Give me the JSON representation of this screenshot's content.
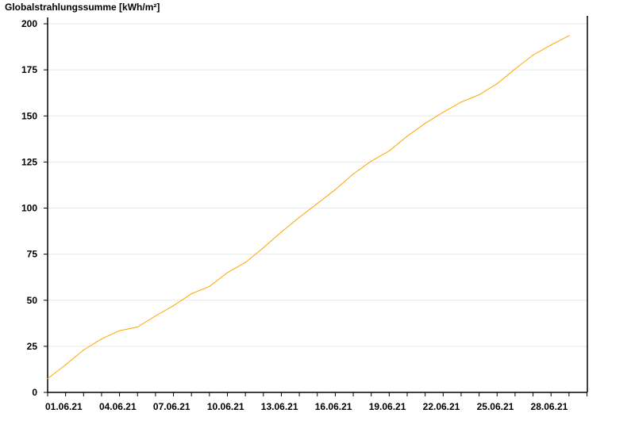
{
  "chart_data": {
    "type": "line",
    "ylabel": "Globalstrahlungssumme [kWh/m²]",
    "ylim": [
      0,
      200
    ],
    "yticks": [
      0,
      25,
      50,
      75,
      100,
      125,
      150,
      175,
      200
    ],
    "xtick_labels": [
      "01.06.21",
      "04.06.21",
      "07.06.21",
      "10.06.21",
      "13.06.21",
      "16.06.21",
      "19.06.21",
      "22.06.21",
      "25.06.21",
      "28.06.21"
    ],
    "grid": "horizontal",
    "line_color": "#ffa500",
    "x": [
      "01.06.21",
      "02.06.21",
      "03.06.21",
      "04.06.21",
      "05.06.21",
      "06.06.21",
      "07.06.21",
      "08.06.21",
      "09.06.21",
      "10.06.21",
      "11.06.21",
      "12.06.21",
      "13.06.21",
      "14.06.21",
      "15.06.21",
      "16.06.21",
      "17.06.21",
      "18.06.21",
      "19.06.21",
      "20.06.21",
      "21.06.21",
      "22.06.21",
      "23.06.21",
      "24.06.21",
      "25.06.21",
      "26.06.21",
      "27.06.21",
      "28.06.21",
      "29.06.21",
      "30.06.21"
    ],
    "values": [
      7.5,
      15,
      23,
      29,
      33.5,
      35.5,
      41.5,
      47,
      53.5,
      57.5,
      65,
      70.5,
      78.5,
      87,
      95,
      102.5,
      110,
      118.5,
      125.5,
      131,
      139,
      146,
      152,
      157.5,
      161.5,
      167.5,
      175.5,
      183,
      188.5,
      193.5
    ]
  }
}
